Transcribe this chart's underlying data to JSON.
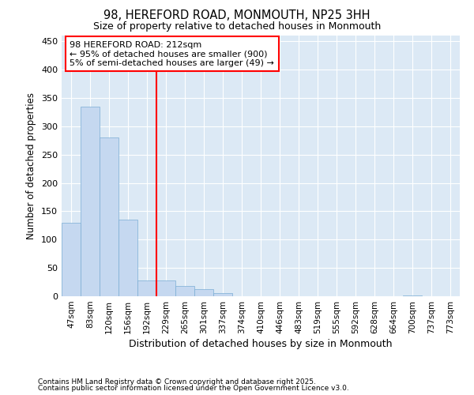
{
  "title1": "98, HEREFORD ROAD, MONMOUTH, NP25 3HH",
  "title2": "Size of property relative to detached houses in Monmouth",
  "xlabel": "Distribution of detached houses by size in Monmouth",
  "ylabel": "Number of detached properties",
  "bar_color": "#c5d8f0",
  "bar_edge_color": "#7aadd4",
  "background_color": "#dce9f5",
  "fig_background": "#ffffff",
  "grid_color": "#ffffff",
  "categories": [
    "47sqm",
    "83sqm",
    "120sqm",
    "156sqm",
    "192sqm",
    "229sqm",
    "265sqm",
    "301sqm",
    "337sqm",
    "374sqm",
    "410sqm",
    "446sqm",
    "483sqm",
    "519sqm",
    "555sqm",
    "592sqm",
    "628sqm",
    "664sqm",
    "700sqm",
    "737sqm",
    "773sqm"
  ],
  "values": [
    130,
    335,
    280,
    135,
    28,
    28,
    18,
    12,
    5,
    0,
    0,
    0,
    0,
    0,
    0,
    0,
    0,
    0,
    1,
    0,
    0
  ],
  "ylim": [
    0,
    460
  ],
  "yticks": [
    0,
    50,
    100,
    150,
    200,
    250,
    300,
    350,
    400,
    450
  ],
  "vline_x": 4.5,
  "annotation_text": "98 HEREFORD ROAD: 212sqm\n← 95% of detached houses are smaller (900)\n5% of semi-detached houses are larger (49) →",
  "footnote1": "Contains HM Land Registry data © Crown copyright and database right 2025.",
  "footnote2": "Contains public sector information licensed under the Open Government Licence v3.0."
}
